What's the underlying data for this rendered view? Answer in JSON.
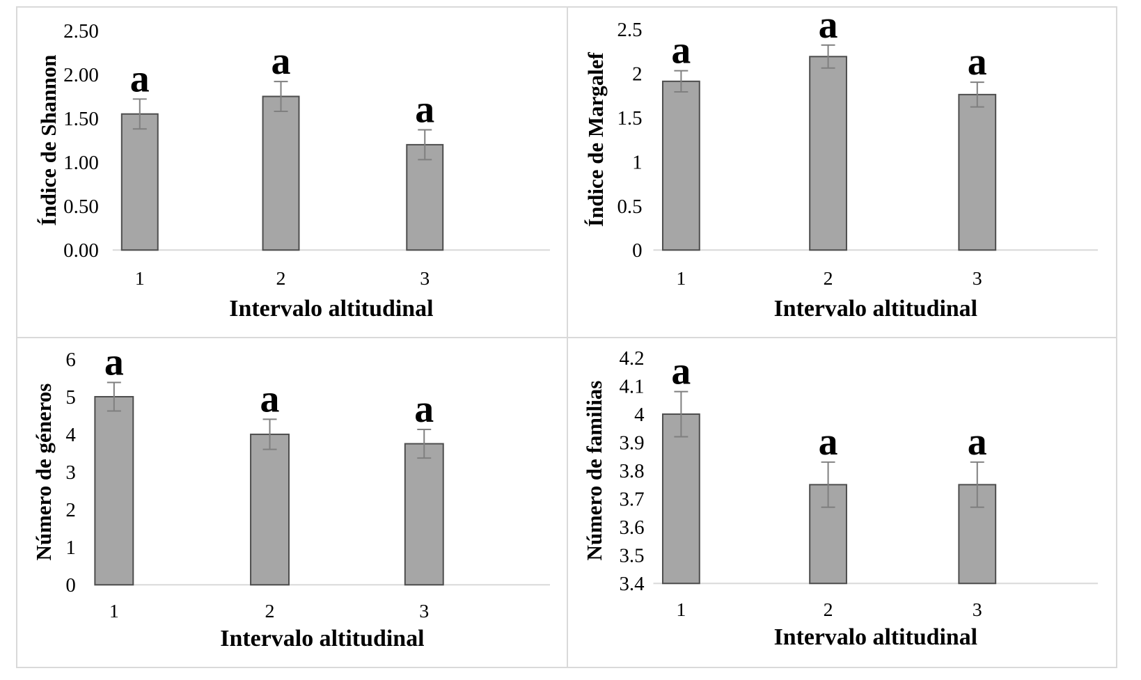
{
  "figure": {
    "description": "2x2 panel of bar charts comparing diversity metrics across altitudinal intervals",
    "panel_border_color": "#d9d9d9",
    "background": "#ffffff"
  },
  "styles": {
    "bar_fill": "#a6a6a6",
    "bar_border": "#4d4d4d",
    "error_color": "#7f7f7f",
    "axis_line_color": "#d9d9d9",
    "text_color": "#000000"
  },
  "chart_data": [
    {
      "id": "shannon",
      "type": "bar",
      "position": "top-left",
      "title": "",
      "ylabel": "Índice de Shannon",
      "xlabel": "Intervalo altitudinal",
      "categories": [
        "1",
        "2",
        "3"
      ],
      "values": [
        1.55,
        1.75,
        1.2
      ],
      "error_bars": [
        0.17,
        0.17,
        0.17
      ],
      "significance_labels": [
        "a",
        "a",
        "a"
      ],
      "ylim": [
        0,
        2.5
      ],
      "ytick_labels": [
        "2.50",
        "2.00",
        "1.50",
        "1.00",
        "0.50",
        "0.00"
      ],
      "grid": false,
      "legend": false
    },
    {
      "id": "margalef",
      "type": "bar",
      "position": "top-right",
      "title": "",
      "ylabel": "Índice de Margalef",
      "xlabel": "Intervalo altitudinal",
      "categories": [
        "1",
        "2",
        "3"
      ],
      "values": [
        1.91,
        2.19,
        1.76
      ],
      "error_bars": [
        0.12,
        0.13,
        0.14
      ],
      "significance_labels": [
        "a",
        "a",
        "a"
      ],
      "ylim": [
        0,
        2.5
      ],
      "ytick_labels": [
        "2.5",
        "2",
        "1.5",
        "1",
        "0.5",
        "0"
      ],
      "grid": false,
      "legend": false
    },
    {
      "id": "generos",
      "type": "bar",
      "position": "bottom-left",
      "title": "",
      "ylabel": "Número de géneros",
      "xlabel": "Intervalo altitudinal",
      "categories": [
        "1",
        "2",
        "3"
      ],
      "values": [
        5.0,
        4.0,
        3.75
      ],
      "error_bars": [
        0.38,
        0.4,
        0.38
      ],
      "significance_labels": [
        "a",
        "a",
        "a"
      ],
      "ylim": [
        0,
        6
      ],
      "ytick_labels": [
        "6",
        "5",
        "4",
        "3",
        "2",
        "1",
        "0"
      ],
      "grid": false,
      "legend": false
    },
    {
      "id": "familias",
      "type": "bar",
      "position": "bottom-right",
      "title": "",
      "ylabel": "Número de familias",
      "xlabel": "Intervalo altitudinal",
      "categories": [
        "1",
        "2",
        "3"
      ],
      "values": [
        4.0,
        3.75,
        3.75
      ],
      "error_bars": [
        0.08,
        0.08,
        0.08
      ],
      "significance_labels": [
        "a",
        "a",
        "a"
      ],
      "ylim": [
        3.4,
        4.2
      ],
      "ytick_labels": [
        "4.2",
        "4.1",
        "4",
        "3.9",
        "3.8",
        "3.7",
        "3.6",
        "3.5",
        "3.4"
      ],
      "grid": false,
      "legend": false
    }
  ]
}
